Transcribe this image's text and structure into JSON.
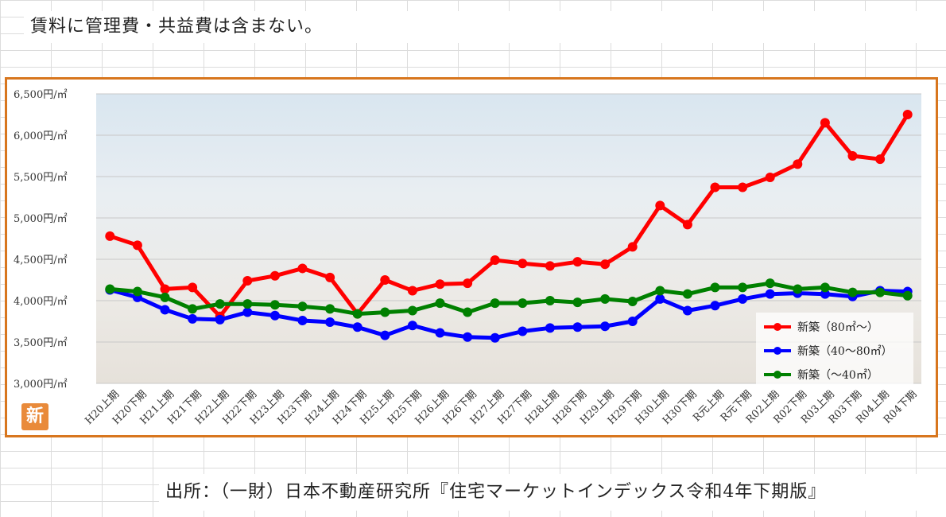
{
  "header": {
    "note": "賃料に管理費・共益費は含まない。"
  },
  "badge": {
    "label": "新"
  },
  "footer": {
    "source": "出所：（一財）日本不動産研究所『住宅マーケットインデックス令和4年下期版』"
  },
  "colors": {
    "frame": "#d8761e",
    "badge": "#e98a3a"
  },
  "chart_data": {
    "type": "line",
    "x": [
      "H20上期",
      "H20下期",
      "H21上期",
      "H21下期",
      "H22上期",
      "H22下期",
      "H23上期",
      "H23下期",
      "H24上期",
      "H24下期",
      "H25上期",
      "H25下期",
      "H26上期",
      "H26下期",
      "H27上期",
      "H27下期",
      "H28上期",
      "H28下期",
      "H29上期",
      "H29下期",
      "H30上期",
      "H30下期",
      "R元上期",
      "R元下期",
      "R02上期",
      "R02下期",
      "R03上期",
      "R03下期",
      "R04上期",
      "R04下期"
    ],
    "ylim": [
      3000,
      6500
    ],
    "yticks": [
      3000,
      3500,
      4000,
      4500,
      5000,
      5500,
      6000,
      6500
    ],
    "ytick_labels": [
      "3,000円/㎡",
      "3,500円/㎡",
      "4,000円/㎡",
      "4,500円/㎡",
      "5,000円/㎡",
      "5,500円/㎡",
      "6,000円/㎡",
      "6,500円/㎡"
    ],
    "grid": true,
    "legend_position": "bottom-right",
    "series": [
      {
        "name": "新築（80㎡～）",
        "color": "#ff0000",
        "values": [
          4780,
          4670,
          4140,
          4160,
          3810,
          4240,
          4300,
          4390,
          4280,
          3840,
          4250,
          4120,
          4200,
          4210,
          4490,
          4450,
          4420,
          4470,
          4440,
          4650,
          5150,
          4920,
          5370,
          5370,
          5490,
          5650,
          6150,
          5750,
          5710,
          6250
        ]
      },
      {
        "name": "新築（40～80㎡）",
        "color": "#0000ff",
        "values": [
          4130,
          4040,
          3890,
          3780,
          3770,
          3860,
          3820,
          3760,
          3740,
          3680,
          3580,
          3700,
          3610,
          3560,
          3550,
          3630,
          3670,
          3680,
          3690,
          3750,
          4020,
          3880,
          3940,
          4020,
          4080,
          4090,
          4080,
          4050,
          4120,
          4110
        ]
      },
      {
        "name": "新築（～40㎡）",
        "color": "#008000",
        "values": [
          4140,
          4110,
          4040,
          3900,
          3960,
          3960,
          3950,
          3930,
          3900,
          3840,
          3860,
          3880,
          3970,
          3860,
          3970,
          3970,
          4000,
          3980,
          4020,
          3990,
          4120,
          4080,
          4160,
          4160,
          4210,
          4140,
          4160,
          4100,
          4100,
          4060
        ]
      }
    ]
  }
}
